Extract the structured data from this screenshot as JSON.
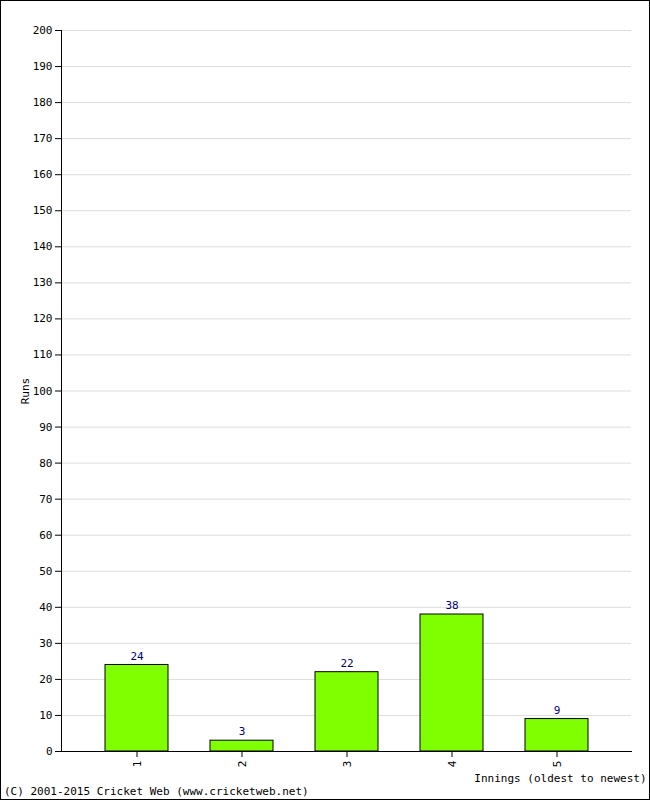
{
  "chart_data": {
    "type": "bar",
    "caption": "(C) 2001-2015 Cricket Web (www.cricketweb.net)",
    "x_label": "Innings (oldest to newest)",
    "y_label": "Runs",
    "categories": [
      "1",
      "2",
      "3",
      "4",
      "5"
    ],
    "values": [
      24,
      3,
      22,
      38,
      9
    ],
    "color": "#80ff00",
    "ylim": [
      0,
      200
    ],
    "yticks": [
      0,
      10,
      20,
      30,
      40,
      50,
      60,
      70,
      80,
      90,
      100,
      110,
      120,
      130,
      140,
      150,
      160,
      170,
      180,
      190,
      200
    ],
    "grid": true,
    "data_labels": true
  }
}
